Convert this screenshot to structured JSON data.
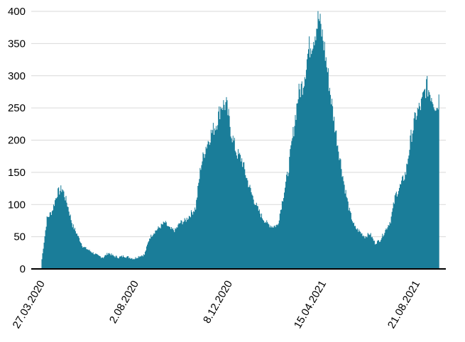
{
  "chart_data": {
    "type": "area",
    "title": "",
    "xlabel": "",
    "ylabel": "",
    "ylim": [
      0,
      400
    ],
    "yticks": [
      0,
      50,
      100,
      150,
      200,
      250,
      300,
      350,
      400
    ],
    "xlim": [
      "2020-03-13",
      "2021-09-30"
    ],
    "xtick_labels": [
      "27.03.2020",
      "2.08.2020",
      "8.12.2020",
      "15.04.2021",
      "21.08.2021"
    ],
    "xtick_dates": [
      "2020-03-27",
      "2020-08-02",
      "2020-12-08",
      "2021-04-15",
      "2021-08-21"
    ],
    "grid": true,
    "legend": "none",
    "color": "#1a7d99",
    "series": [
      {
        "x": [
          "2020-03-27",
          "2020-04-03",
          "2020-04-10",
          "2020-04-17",
          "2020-04-24",
          "2020-05-01",
          "2020-05-08",
          "2020-05-15",
          "2020-05-22",
          "2020-05-29",
          "2020-06-05",
          "2020-06-12",
          "2020-06-19",
          "2020-06-26",
          "2020-07-03",
          "2020-07-10",
          "2020-07-17",
          "2020-07-24",
          "2020-07-31",
          "2020-08-07",
          "2020-08-14",
          "2020-08-21",
          "2020-08-28",
          "2020-09-04",
          "2020-09-11",
          "2020-09-18",
          "2020-09-25",
          "2020-10-02",
          "2020-10-09",
          "2020-10-16",
          "2020-10-23",
          "2020-10-30",
          "2020-11-06",
          "2020-11-13",
          "2020-11-20",
          "2020-11-27",
          "2020-12-04",
          "2020-12-11",
          "2020-12-18",
          "2020-12-25",
          "2021-01-01",
          "2021-01-08",
          "2021-01-15",
          "2021-01-22",
          "2021-01-29",
          "2021-02-05",
          "2021-02-12",
          "2021-02-19",
          "2021-02-26",
          "2021-03-05",
          "2021-03-12",
          "2021-03-19",
          "2021-03-26",
          "2021-04-02",
          "2021-04-09",
          "2021-04-16",
          "2021-04-23",
          "2021-04-30",
          "2021-05-07",
          "2021-05-14",
          "2021-05-21",
          "2021-05-28",
          "2021-06-04",
          "2021-06-11",
          "2021-06-18",
          "2021-06-25",
          "2021-07-02",
          "2021-07-09",
          "2021-07-16",
          "2021-07-23",
          "2021-07-30",
          "2021-08-06",
          "2021-08-13",
          "2021-08-20",
          "2021-08-27",
          "2021-09-03",
          "2021-09-10",
          "2021-09-17",
          "2021-09-21"
        ],
        "y": [
          15,
          78,
          90,
          118,
          125,
          100,
          68,
          52,
          35,
          30,
          25,
          20,
          18,
          25,
          20,
          18,
          20,
          18,
          16,
          20,
          22,
          48,
          58,
          65,
          72,
          62,
          60,
          72,
          75,
          85,
          95,
          160,
          190,
          210,
          225,
          255,
          255,
          210,
          180,
          170,
          140,
          115,
          95,
          80,
          70,
          66,
          68,
          110,
          150,
          210,
          270,
          290,
          340,
          360,
          390,
          350,
          290,
          230,
          180,
          130,
          90,
          65,
          58,
          50,
          55,
          40,
          45,
          60,
          75,
          115,
          130,
          150,
          205,
          240,
          255,
          285,
          270,
          250,
          270
        ]
      }
    ]
  }
}
